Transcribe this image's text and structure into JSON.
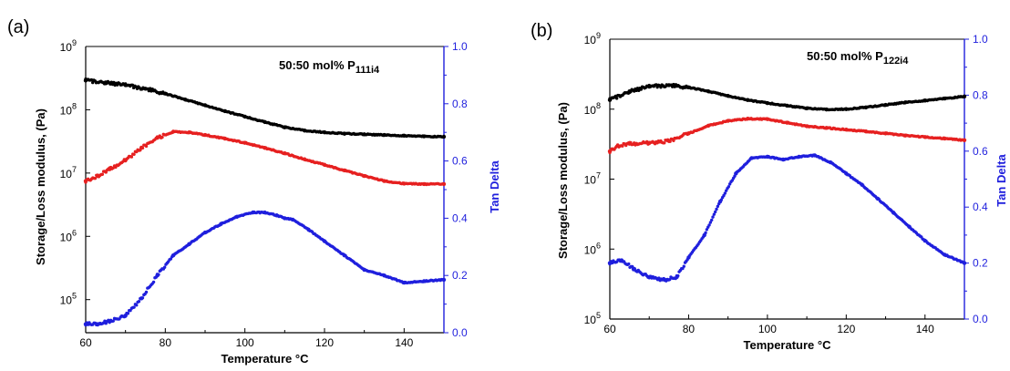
{
  "chart_data": [
    {
      "type": "scatter",
      "panel_label": "(a)",
      "annotation": {
        "text": "50:50 mol% P",
        "subscript": "111i4"
      },
      "xlabel": "Temperature °C",
      "ylabel": "Storage/Loss modulus, (Pa)",
      "ylabel_right": "Tan Delta",
      "xlim": [
        60,
        150
      ],
      "ylim": [
        30000,
        1000000000
      ],
      "y_scale": "log",
      "ylim_right": [
        0.0,
        1.0
      ],
      "x_ticks": [
        "60",
        "80",
        "100",
        "120",
        "140"
      ],
      "y_ticks": [
        {
          "base": "10",
          "exp": "5",
          "value": 100000
        },
        {
          "base": "10",
          "exp": "6",
          "value": 1000000
        },
        {
          "base": "10",
          "exp": "7",
          "value": 10000000
        },
        {
          "base": "10",
          "exp": "8",
          "value": 100000000
        },
        {
          "base": "10",
          "exp": "9",
          "value": 1000000000
        }
      ],
      "y_ticks_right": [
        "0.0",
        "0.2",
        "0.4",
        "0.6",
        "0.8",
        "1.0"
      ],
      "right_axis_color": "#1f1fdd",
      "series": [
        {
          "color": "#000000",
          "axis": "left",
          "x": [
            60,
            65,
            70,
            75,
            80,
            85,
            90,
            95,
            100,
            105,
            110,
            115,
            120,
            125,
            130,
            135,
            140,
            145,
            150
          ],
          "y": [
            290000000,
            270000000,
            245000000,
            215000000,
            180000000,
            145000000,
            118000000,
            95000000,
            78000000,
            64000000,
            53000000,
            47000000,
            44000000,
            42000000,
            41000000,
            40000000,
            39000000,
            38000000,
            37500000
          ]
        },
        {
          "color": "#e62020",
          "axis": "left",
          "x": [
            60,
            63,
            66,
            70,
            74,
            78,
            82,
            86,
            90,
            95,
            100,
            105,
            110,
            115,
            120,
            125,
            130,
            135,
            140,
            145,
            150
          ],
          "y": [
            7500000,
            9000000,
            11500000,
            16000000,
            25000000,
            36000000,
            45000000,
            44000000,
            40000000,
            35000000,
            30000000,
            25000000,
            20500000,
            16500000,
            13500000,
            11000000,
            9000000,
            7500000,
            6800000,
            6700000,
            6700000
          ]
        },
        {
          "color": "#1f1fdd",
          "axis": "right",
          "x": [
            60,
            63,
            66,
            70,
            74,
            78,
            82,
            86,
            90,
            94,
            98,
            102,
            105,
            108,
            110,
            112,
            116,
            120,
            125,
            130,
            135,
            140,
            145,
            150
          ],
          "y": [
            0.03,
            0.03,
            0.04,
            0.06,
            0.12,
            0.2,
            0.27,
            0.31,
            0.35,
            0.38,
            0.405,
            0.42,
            0.42,
            0.41,
            0.4,
            0.395,
            0.36,
            0.32,
            0.27,
            0.22,
            0.2,
            0.175,
            0.18,
            0.185
          ]
        }
      ]
    },
    {
      "type": "scatter",
      "panel_label": "(b)",
      "annotation": {
        "text": "50:50 mol% P",
        "subscript": "122i4"
      },
      "xlabel": "Temperature °C",
      "ylabel": "Storage/Loss modulus, (Pa)",
      "ylabel_right": "Tan Delta",
      "xlim": [
        60,
        150
      ],
      "ylim": [
        100000,
        1000000000
      ],
      "y_scale": "log",
      "ylim_right": [
        0.0,
        1.0
      ],
      "x_ticks": [
        "60",
        "80",
        "100",
        "120",
        "140"
      ],
      "y_ticks": [
        {
          "base": "10",
          "exp": "5",
          "value": 100000
        },
        {
          "base": "10",
          "exp": "6",
          "value": 1000000
        },
        {
          "base": "10",
          "exp": "7",
          "value": 10000000
        },
        {
          "base": "10",
          "exp": "8",
          "value": 100000000
        },
        {
          "base": "10",
          "exp": "9",
          "value": 1000000000
        }
      ],
      "y_ticks_right": [
        "0.0",
        "0.2",
        "0.4",
        "0.6",
        "0.8",
        "1.0"
      ],
      "right_axis_color": "#1f1fdd",
      "series": [
        {
          "color": "#000000",
          "axis": "left",
          "x": [
            60,
            65,
            70,
            75,
            80,
            85,
            90,
            95,
            100,
            105,
            110,
            115,
            120,
            125,
            130,
            135,
            140,
            145,
            150
          ],
          "y": [
            135000000,
            180000000,
            210000000,
            220000000,
            205000000,
            180000000,
            155000000,
            135000000,
            122000000,
            112000000,
            103000000,
            99000000,
            100000000,
            106000000,
            115000000,
            125000000,
            133000000,
            142000000,
            152000000
          ]
        },
        {
          "color": "#e62020",
          "axis": "left",
          "x": [
            60,
            62,
            65,
            70,
            75,
            80,
            85,
            90,
            95,
            100,
            105,
            110,
            115,
            120,
            125,
            130,
            135,
            140,
            145,
            150
          ],
          "y": [
            25000000,
            30000000,
            32000000,
            33000000,
            35000000,
            45000000,
            58000000,
            68000000,
            73000000,
            72000000,
            64000000,
            57000000,
            54000000,
            51000000,
            48000000,
            45000000,
            42000000,
            40000000,
            38000000,
            36000000
          ]
        },
        {
          "color": "#1f1fdd",
          "axis": "right",
          "x": [
            60,
            63,
            66,
            70,
            74,
            77,
            80,
            84,
            88,
            92,
            96,
            100,
            104,
            108,
            112,
            116,
            120,
            124,
            128,
            132,
            136,
            140,
            145,
            150
          ],
          "y": [
            0.2,
            0.21,
            0.18,
            0.15,
            0.14,
            0.15,
            0.22,
            0.3,
            0.42,
            0.52,
            0.575,
            0.58,
            0.57,
            0.58,
            0.585,
            0.56,
            0.52,
            0.48,
            0.43,
            0.38,
            0.33,
            0.28,
            0.23,
            0.2
          ]
        }
      ]
    }
  ]
}
